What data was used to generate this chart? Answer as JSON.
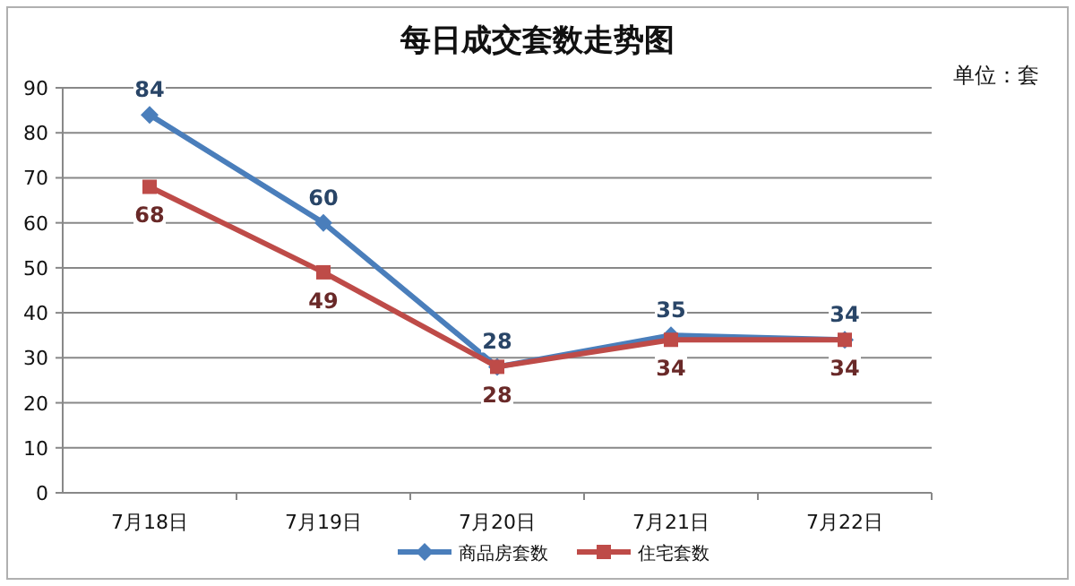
{
  "chart_data": {
    "type": "line",
    "title": "每日成交套数走势图",
    "annotations": [
      "单位：套"
    ],
    "categories": [
      "7月18日",
      "7月19日",
      "7月20日",
      "7月21日",
      "7月22日"
    ],
    "series": [
      {
        "name": "商品房套数",
        "color": "#4a7ebb",
        "marker": "diamond",
        "values": [
          84,
          60,
          28,
          35,
          34
        ]
      },
      {
        "name": "住宅套数",
        "color": "#be4b48",
        "marker": "square",
        "values": [
          68,
          49,
          28,
          34,
          34
        ]
      }
    ],
    "ylim": [
      0,
      90
    ],
    "yticks": [
      0,
      10,
      20,
      30,
      40,
      50,
      60,
      70,
      80,
      90
    ],
    "grid": "y",
    "legend": "bottom",
    "data_labels": true
  }
}
